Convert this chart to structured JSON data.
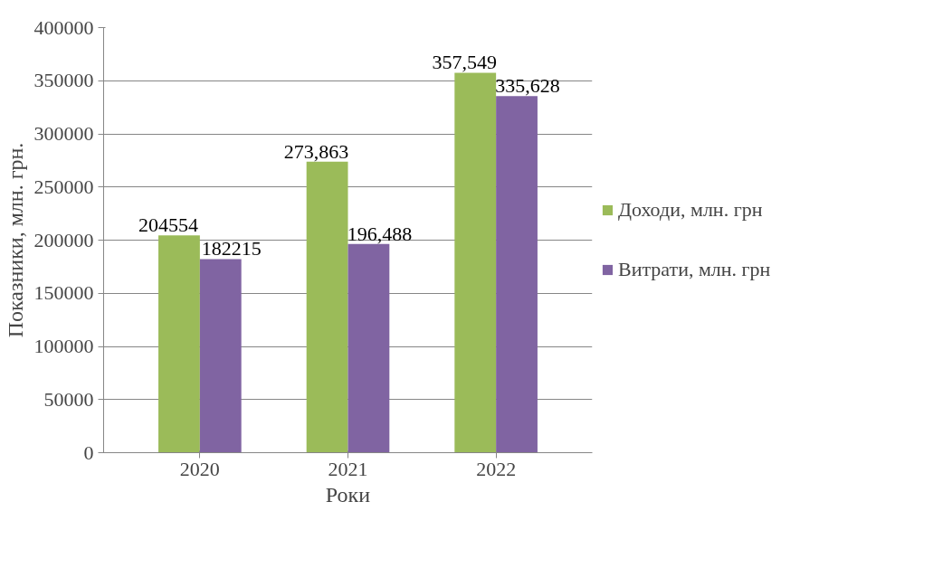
{
  "chart_data": {
    "type": "bar",
    "xlabel": "Роки",
    "ylabel": "Показники, млн. грн.",
    "categories": [
      "2020",
      "2021",
      "2022"
    ],
    "series": [
      {
        "name": "Доходи, млн. грн",
        "color": "#9bbb59",
        "values": [
          204554,
          273863,
          357549
        ],
        "value_labels": [
          "204554",
          "273,863",
          "357,549"
        ]
      },
      {
        "name": "Витрати, млн. грн",
        "color": "#8064a2",
        "values": [
          182215,
          196488,
          335628
        ],
        "value_labels": [
          "182215",
          "196,488",
          "335,628"
        ]
      }
    ],
    "ylim": [
      0,
      400000
    ],
    "yticks": [
      0,
      50000,
      100000,
      150000,
      200000,
      250000,
      300000,
      350000,
      400000
    ],
    "grid": "y",
    "legend": "right"
  }
}
